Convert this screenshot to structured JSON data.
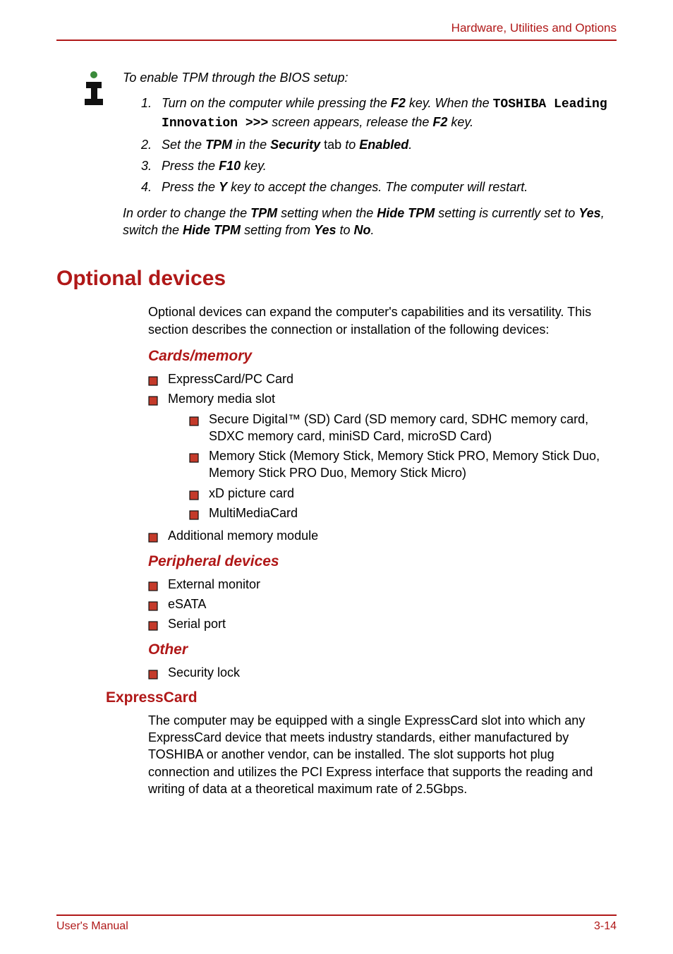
{
  "colors": {
    "accent": "#b01818",
    "bullet_fill": "#c43a2a",
    "bullet_stroke": "#111111",
    "text": "#000000",
    "background": "#ffffff"
  },
  "header": {
    "running_title": "Hardware, Utilities and Options"
  },
  "info_box": {
    "intro": "To enable TPM through the BIOS setup:",
    "steps": [
      {
        "num": "1.",
        "parts": [
          {
            "t": "Turn on the computer while pressing the ",
            "style": "i"
          },
          {
            "t": "F2",
            "style": "bi"
          },
          {
            "t": " key. When the ",
            "style": "i"
          },
          {
            "t": "TOSHIBA Leading Innovation >>>",
            "style": "mono"
          },
          {
            "t": " screen appears, release the ",
            "style": "i"
          },
          {
            "t": "F2",
            "style": "bi"
          },
          {
            "t": " key.",
            "style": "i"
          }
        ]
      },
      {
        "num": "2.",
        "parts": [
          {
            "t": "Set the ",
            "style": "i"
          },
          {
            "t": "TPM",
            "style": "bi"
          },
          {
            "t": " in the ",
            "style": "i"
          },
          {
            "t": "Security",
            "style": "bi"
          },
          {
            "t": " tab ",
            "style": "plain"
          },
          {
            "t": "to ",
            "style": "i"
          },
          {
            "t": "Enabled",
            "style": "bi"
          },
          {
            "t": ".",
            "style": "i"
          }
        ]
      },
      {
        "num": "3.",
        "parts": [
          {
            "t": "Press the ",
            "style": "i"
          },
          {
            "t": "F10",
            "style": "bi"
          },
          {
            "t": " key.",
            "style": "i"
          }
        ]
      },
      {
        "num": "4.",
        "parts": [
          {
            "t": "Press the ",
            "style": "i"
          },
          {
            "t": "Y",
            "style": "bi"
          },
          {
            "t": " key to accept the changes. The computer will restart.",
            "style": "i"
          }
        ]
      }
    ],
    "note_parts": [
      {
        "t": "In order to change the ",
        "style": "i"
      },
      {
        "t": "TPM",
        "style": "bi"
      },
      {
        "t": " setting when the ",
        "style": "i"
      },
      {
        "t": "Hide TPM",
        "style": "bi"
      },
      {
        "t": " setting is currently set to ",
        "style": "i"
      },
      {
        "t": "Yes",
        "style": "bi"
      },
      {
        "t": ", switch the ",
        "style": "i"
      },
      {
        "t": "Hide TPM",
        "style": "bi"
      },
      {
        "t": " setting from ",
        "style": "i"
      },
      {
        "t": "Yes",
        "style": "bi"
      },
      {
        "t": " to ",
        "style": "i"
      },
      {
        "t": "No",
        "style": "bi"
      },
      {
        "t": ".",
        "style": "i"
      }
    ]
  },
  "section": {
    "title": "Optional devices",
    "intro": "Optional devices can expand the computer's capabilities and its versatility. This section describes the connection or installation of the following devices:",
    "groups": [
      {
        "heading": "Cards/memory",
        "items": [
          {
            "text": "ExpressCard/PC Card"
          },
          {
            "text": "Memory media slot",
            "children": [
              {
                "text": "Secure Digital™ (SD) Card (SD memory card, SDHC memory card, SDXC memory card, miniSD Card, microSD Card)"
              },
              {
                "text": "Memory Stick (Memory Stick, Memory Stick PRO, Memory Stick Duo, Memory Stick PRO Duo, Memory Stick Micro)"
              },
              {
                "text": "xD picture card"
              },
              {
                "text": "MultiMediaCard"
              }
            ]
          },
          {
            "text": "Additional memory module"
          }
        ]
      },
      {
        "heading": "Peripheral devices",
        "items": [
          {
            "text": "External monitor"
          },
          {
            "text": "eSATA"
          },
          {
            "text": "Serial port"
          }
        ]
      },
      {
        "heading": "Other",
        "items": [
          {
            "text": "Security lock"
          }
        ]
      }
    ],
    "subsection": {
      "heading": "ExpressCard",
      "body": "The computer may be equipped with a single ExpressCard slot into which any ExpressCard device that meets industry standards, either manufactured by TOSHIBA or another vendor, can be installed. The slot supports hot plug connection and utilizes the PCI Express interface that supports the reading and writing of data at a theoretical maximum rate of 2.5Gbps."
    }
  },
  "footer": {
    "left": "User's Manual",
    "right": "3-14"
  }
}
